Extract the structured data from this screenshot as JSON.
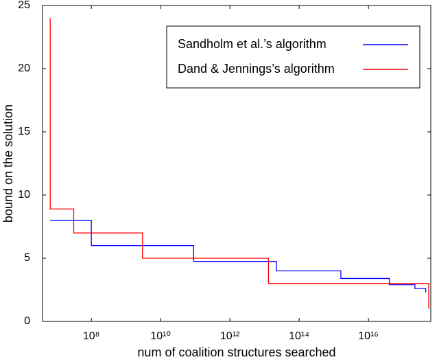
{
  "chart_data": {
    "type": "line",
    "step": true,
    "xscale": "log",
    "xlabel": "num of coalition structures searched",
    "ylabel": "bound on the solution",
    "xlim": [
      3900000,
      630000000000000000
    ],
    "ylim": [
      0,
      25
    ],
    "xticks": [
      {
        "value": 100000000,
        "label": "10⁸"
      },
      {
        "value": 10000000000,
        "label": "10¹⁰"
      },
      {
        "value": 1000000000000,
        "label": "10¹²"
      },
      {
        "value": 100000000000000,
        "label": "10¹⁴"
      },
      {
        "value": 10000000000000000,
        "label": "10¹⁶"
      }
    ],
    "yticks": [
      0,
      5,
      10,
      15,
      20,
      25
    ],
    "grid": false,
    "legend": "upper right",
    "series": [
      {
        "name": "Sandholm et al.’s algorithm",
        "color": "#0000ff",
        "x": [
          6500000,
          100000000,
          90000000000,
          22000000000000,
          1600000000000000,
          40000000000000000,
          220000000000000000,
          450000000000000000
        ],
        "values": [
          8,
          6,
          4.75,
          4,
          3.4,
          2.9,
          2.6,
          2.3
        ]
      },
      {
        "name": "Dand & Jennings’s algorithm",
        "color": "#ff0000",
        "x": [
          6500000,
          6500000,
          31000000,
          3000000000,
          13000000000000,
          550000000000000000,
          550000000000000000
        ],
        "values": [
          24,
          8.9,
          7,
          5,
          3,
          3,
          1
        ]
      }
    ]
  }
}
